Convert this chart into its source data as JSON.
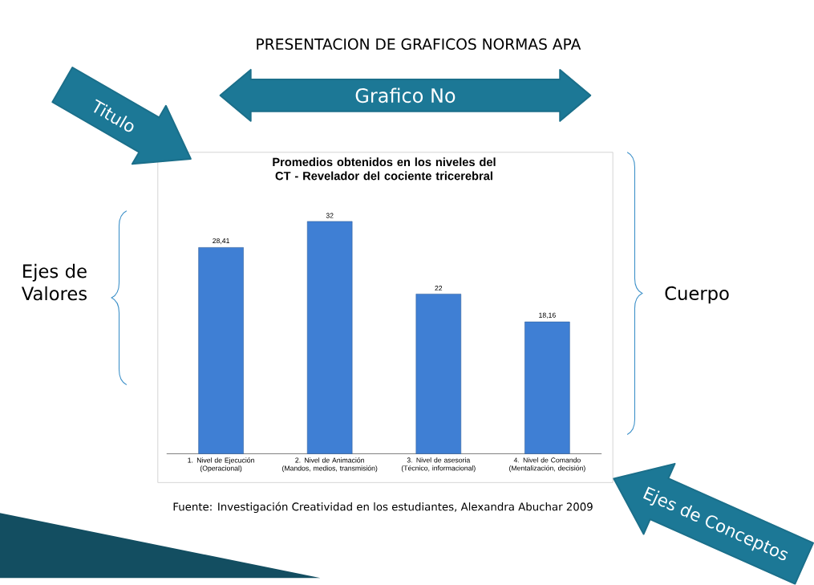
{
  "chart_data": {
    "type": "bar",
    "title": "Promedios  obtenidos  en los  niveles del CT - Revelador del cociente tricerebral",
    "categories": [
      "1. Nivel de Ejecución (Operacional)",
      "2. Nivel de Animación (Mandos, medios, transmisión)",
      "3. Nivel de asesoria (Técnico, informacional)",
      "4. Nivel de Comando (Mentalización, decisión)"
    ],
    "values": [
      28.41,
      32,
      22,
      18.16
    ],
    "value_labels": [
      "28,41",
      "32",
      "22",
      "18,16"
    ],
    "color": "#3f7fd4",
    "annotations": [
      "PRESENTACION DE  GRAFICOS  NORMAS  APA",
      "Grafico  No",
      "Titulo",
      "Ejes  de Valores",
      "Cuerpo",
      "Ejes  de  Conceptos",
      "Fuente: Investigación Creatividad  en  los estudiantes, Alexandra  Abuchar  2009"
    ]
  }
}
